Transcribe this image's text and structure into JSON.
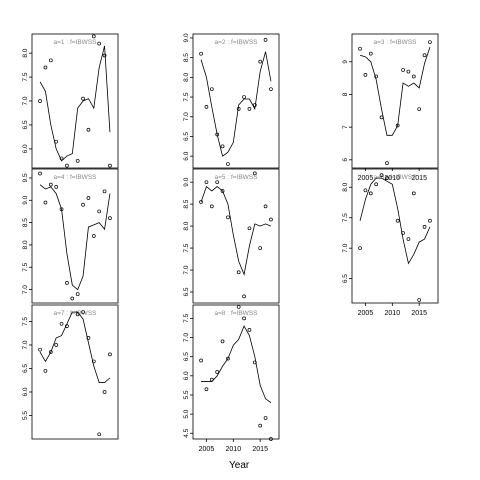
{
  "xlabel": "Year",
  "chart_data": [
    {
      "type": "scatter",
      "title": "a=1 : f=IBWSS",
      "xlim": [
        2002.5,
        2018.5
      ],
      "ylim": [
        5.6,
        8.4
      ],
      "yticks": [
        "6.0",
        "6.5",
        "7.0",
        "7.5",
        "8.0"
      ],
      "ytick_values": [
        6.0,
        6.5,
        7.0,
        7.5,
        8.0
      ],
      "xticks": [
        "2005",
        "2010",
        "2015"
      ],
      "xtick_values": [
        2005,
        2010,
        2015
      ],
      "show_xticks": false,
      "points": {
        "x": [
          2004,
          2005,
          2006,
          2007,
          2008,
          2009,
          2011,
          2012,
          2013,
          2014,
          2015,
          2016,
          2017
        ],
        "y": [
          7.0,
          7.7,
          7.85,
          6.15,
          5.8,
          5.65,
          5.75,
          7.05,
          6.4,
          8.35,
          8.2,
          7.95,
          5.65
        ]
      },
      "line": {
        "x": [
          2004,
          2005,
          2006,
          2007,
          2008,
          2009,
          2010,
          2011,
          2012,
          2013,
          2014,
          2015,
          2016,
          2017
        ],
        "y": [
          7.4,
          7.2,
          6.5,
          6.0,
          5.75,
          5.85,
          5.9,
          6.85,
          7.0,
          7.05,
          6.85,
          7.7,
          8.15,
          6.35
        ]
      }
    },
    {
      "type": "scatter",
      "title": "a=4 : f=IBWSS",
      "xlim": [
        2002.5,
        2018.5
      ],
      "ylim": [
        6.7,
        9.7
      ],
      "yticks": [
        "7.0",
        "7.5",
        "8.0",
        "8.5",
        "9.0",
        "9.5"
      ],
      "ytick_values": [
        7.0,
        7.5,
        8.0,
        8.5,
        9.0,
        9.5
      ],
      "xticks": [
        "2005",
        "2010",
        "2015"
      ],
      "xtick_values": [
        2005,
        2010,
        2015
      ],
      "show_xticks": false,
      "points": {
        "x": [
          2004,
          2005,
          2006,
          2007,
          2008,
          2009,
          2010,
          2011,
          2012,
          2013,
          2014,
          2015,
          2016,
          2017
        ],
        "y": [
          9.6,
          8.95,
          9.35,
          9.3,
          8.8,
          7.15,
          6.8,
          6.9,
          8.9,
          9.05,
          8.2,
          8.75,
          9.2,
          8.6
        ]
      },
      "line": {
        "x": [
          2004,
          2005,
          2006,
          2007,
          2008,
          2009,
          2010,
          2011,
          2012,
          2013,
          2014,
          2015,
          2016,
          2017
        ],
        "y": [
          9.35,
          9.25,
          9.3,
          9.15,
          8.8,
          7.8,
          7.1,
          7.0,
          7.3,
          8.4,
          8.45,
          8.5,
          8.35,
          9.15
        ]
      }
    },
    {
      "type": "scatter",
      "title": "a=7 : f=IBWSS",
      "xlim": [
        2002.5,
        2018.5
      ],
      "ylim": [
        5.0,
        7.85
      ],
      "yticks": [
        "5.5",
        "6.0",
        "6.5",
        "7.0",
        "7.5"
      ],
      "ytick_values": [
        5.5,
        6.0,
        6.5,
        7.0,
        7.5
      ],
      "xticks": [
        "2005",
        "2010",
        "2015"
      ],
      "xtick_values": [
        2005,
        2010,
        2015
      ],
      "show_xticks": false,
      "points": {
        "x": [
          2004,
          2005,
          2006,
          2007,
          2008,
          2009,
          2011,
          2012,
          2013,
          2014,
          2015,
          2016,
          2017
        ],
        "y": [
          6.9,
          6.45,
          6.85,
          7.0,
          7.45,
          7.4,
          7.65,
          7.7,
          7.15,
          6.65,
          5.1,
          6.0,
          6.8
        ]
      },
      "line": {
        "x": [
          2004,
          2005,
          2006,
          2007,
          2008,
          2009,
          2010,
          2011,
          2012,
          2013,
          2014,
          2015,
          2016,
          2017
        ],
        "y": [
          6.85,
          6.65,
          6.85,
          7.15,
          7.2,
          7.45,
          7.7,
          7.7,
          7.55,
          7.05,
          6.55,
          6.2,
          6.2,
          6.3
        ]
      }
    },
    {
      "type": "scatter",
      "title": "a=2 : f=IBWSS",
      "xlim": [
        2002.5,
        2018.5
      ],
      "ylim": [
        5.7,
        9.1
      ],
      "yticks": [
        "6.0",
        "6.5",
        "7.0",
        "7.5",
        "8.0",
        "8.5",
        "9.0"
      ],
      "ytick_values": [
        6.0,
        6.5,
        7.0,
        7.5,
        8.0,
        8.5,
        9.0
      ],
      "xticks": [
        "2005",
        "2010",
        "2015"
      ],
      "xtick_values": [
        2005,
        2010,
        2015
      ],
      "show_xticks": false,
      "points": {
        "x": [
          2004,
          2005,
          2006,
          2007,
          2008,
          2009,
          2011,
          2012,
          2013,
          2014,
          2015,
          2016,
          2017
        ],
        "y": [
          8.6,
          7.25,
          7.7,
          6.55,
          6.25,
          5.8,
          7.2,
          7.5,
          7.2,
          7.3,
          8.4,
          8.95,
          7.7
        ]
      },
      "line": {
        "x": [
          2004,
          2005,
          2006,
          2007,
          2008,
          2009,
          2010,
          2011,
          2012,
          2013,
          2014,
          2015,
          2016,
          2017
        ],
        "y": [
          8.45,
          8.0,
          7.25,
          6.55,
          6.0,
          6.1,
          6.35,
          7.3,
          7.45,
          7.45,
          7.2,
          8.15,
          8.65,
          7.9
        ]
      }
    },
    {
      "type": "scatter",
      "title": "a=5 : f=IBWSS",
      "xlim": [
        2002.5,
        2018.5
      ],
      "ylim": [
        6.25,
        9.3
      ],
      "yticks": [
        "6.5",
        "7.0",
        "7.5",
        "8.0",
        "8.5",
        "9.0"
      ],
      "ytick_values": [
        6.5,
        7.0,
        7.5,
        8.0,
        8.5,
        9.0
      ],
      "xticks": [
        "2005",
        "2010",
        "2015"
      ],
      "xtick_values": [
        2005,
        2010,
        2015
      ],
      "show_xticks": false,
      "points": {
        "x": [
          2004,
          2005,
          2006,
          2007,
          2008,
          2009,
          2011,
          2012,
          2013,
          2014,
          2015,
          2016,
          2017
        ],
        "y": [
          8.55,
          9.0,
          8.45,
          9.0,
          8.8,
          8.2,
          6.95,
          6.4,
          7.95,
          9.2,
          7.5,
          8.45,
          8.15
        ]
      },
      "line": {
        "x": [
          2004,
          2005,
          2006,
          2007,
          2008,
          2009,
          2010,
          2011,
          2012,
          2013,
          2014,
          2015,
          2016,
          2017
        ],
        "y": [
          8.55,
          8.9,
          8.8,
          8.9,
          8.8,
          8.5,
          7.8,
          7.2,
          6.9,
          7.55,
          8.05,
          8.0,
          8.05,
          8.0
        ]
      }
    },
    {
      "type": "scatter",
      "title": "a=8 : f=IBWSS",
      "xlim": [
        2002.5,
        2018.5
      ],
      "ylim": [
        4.35,
        7.85
      ],
      "yticks": [
        "4.5",
        "5.0",
        "5.5",
        "6.0",
        "6.5",
        "7.0",
        "7.5"
      ],
      "ytick_values": [
        4.5,
        5.0,
        5.5,
        6.0,
        6.5,
        7.0,
        7.5
      ],
      "xticks": [
        "2005",
        "2010",
        "2015"
      ],
      "xtick_values": [
        2005,
        2010,
        2015
      ],
      "show_xticks": true,
      "points": {
        "x": [
          2004,
          2005,
          2006,
          2007,
          2008,
          2009,
          2011,
          2012,
          2013,
          2014,
          2015,
          2016,
          2017
        ],
        "y": [
          6.4,
          5.65,
          5.9,
          6.1,
          6.9,
          6.45,
          7.8,
          7.5,
          7.2,
          6.35,
          4.7,
          4.9,
          4.35
        ]
      },
      "line": {
        "x": [
          2004,
          2005,
          2006,
          2007,
          2008,
          2009,
          2010,
          2011,
          2012,
          2013,
          2014,
          2015,
          2016,
          2017
        ],
        "y": [
          5.85,
          5.85,
          5.85,
          6.0,
          6.25,
          6.45,
          6.8,
          6.95,
          7.3,
          7.05,
          6.5,
          5.75,
          5.4,
          5.3
        ]
      }
    },
    {
      "type": "scatter",
      "title": "a=3 : f=IBWSS",
      "xlim": [
        2002.5,
        2018.5
      ],
      "ylim": [
        5.75,
        9.85
      ],
      "yticks": [
        "6",
        "7",
        "8",
        "9"
      ],
      "ytick_values": [
        6,
        7,
        8,
        9
      ],
      "xticks": [
        "2005",
        "2010",
        "2015"
      ],
      "xtick_values": [
        2005,
        2010,
        2015
      ],
      "show_xticks": true,
      "points": {
        "x": [
          2004,
          2005,
          2006,
          2007,
          2008,
          2009,
          2011,
          2012,
          2013,
          2014,
          2015,
          2016,
          2017
        ],
        "y": [
          9.4,
          8.6,
          9.25,
          8.55,
          7.3,
          5.9,
          7.05,
          8.75,
          8.7,
          8.55,
          7.55,
          9.2,
          9.6
        ]
      },
      "line": {
        "x": [
          2004,
          2005,
          2006,
          2007,
          2008,
          2009,
          2010,
          2011,
          2012,
          2013,
          2014,
          2015,
          2016,
          2017
        ],
        "y": [
          9.2,
          9.15,
          9.0,
          8.45,
          7.55,
          6.75,
          6.75,
          7.05,
          8.35,
          8.25,
          8.35,
          8.2,
          8.95,
          9.45
        ]
      }
    },
    {
      "type": "scatter",
      "title": "a=6 : f=IBWSS",
      "xlim": [
        2002.5,
        2018.5
      ],
      "ylim": [
        6.1,
        8.3
      ],
      "yticks": [
        "6.5",
        "7.0",
        "7.5",
        "8.0"
      ],
      "ytick_values": [
        6.5,
        7.0,
        7.5,
        8.0
      ],
      "xticks": [
        "2005",
        "2010",
        "2015"
      ],
      "xtick_values": [
        2005,
        2010,
        2015
      ],
      "show_xticks": true,
      "points": {
        "x": [
          2004,
          2005,
          2006,
          2007,
          2008,
          2009,
          2011,
          2012,
          2013,
          2014,
          2015,
          2016,
          2017
        ],
        "y": [
          7.0,
          7.95,
          7.9,
          8.05,
          8.2,
          8.15,
          7.45,
          7.25,
          7.15,
          7.9,
          6.15,
          7.35,
          7.45
        ]
      },
      "line": {
        "x": [
          2004,
          2005,
          2006,
          2007,
          2008,
          2009,
          2010,
          2011,
          2012,
          2013,
          2014,
          2015,
          2016,
          2017
        ],
        "y": [
          7.45,
          7.8,
          8.05,
          8.15,
          8.15,
          8.1,
          8.05,
          7.65,
          7.15,
          6.75,
          6.9,
          7.1,
          7.15,
          7.35
        ]
      }
    }
  ]
}
